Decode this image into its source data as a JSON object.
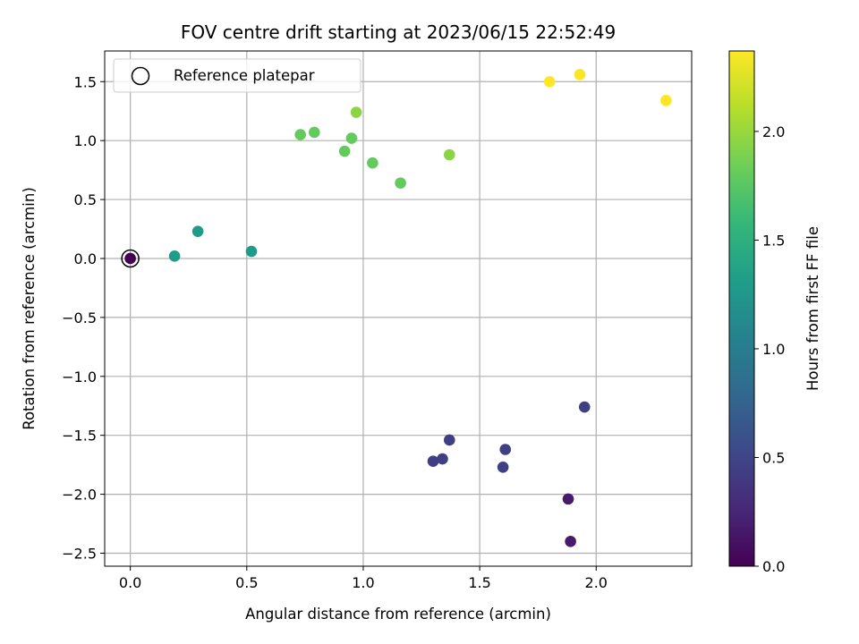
{
  "chart_data": {
    "type": "scatter",
    "title": "FOV centre drift starting at 2023/06/15 22:52:49",
    "xlabel": "Angular distance from reference (arcmin)",
    "ylabel": "Rotation from reference (arcmin)",
    "xlim": [
      -0.11,
      2.41
    ],
    "ylim": [
      -2.61,
      1.76
    ],
    "xticks": [
      0.0,
      0.5,
      1.0,
      1.5,
      2.0
    ],
    "xtick_labels": [
      "0.0",
      "0.5",
      "1.0",
      "1.5",
      "2.0"
    ],
    "yticks": [
      1.5,
      1.0,
      0.5,
      0.0,
      -0.5,
      -1.0,
      -1.5,
      -2.0,
      -2.5
    ],
    "ytick_labels": [
      "1.5",
      "1.0",
      "0.5",
      "0.0",
      "−0.5",
      "−1.0",
      "−1.5",
      "−2.0",
      "−2.5"
    ],
    "grid": true,
    "legend": {
      "placement": "upper-left",
      "entries": [
        "Reference platepar"
      ]
    },
    "colorbar": {
      "label": "Hours from first FF file",
      "range": [
        0.0,
        2.37
      ],
      "ticks": [
        0.0,
        0.5,
        1.0,
        1.5,
        2.0
      ],
      "tick_labels": [
        "0.0",
        "0.5",
        "1.0",
        "1.5",
        "2.0"
      ],
      "colormap": "viridis"
    },
    "reference_point": {
      "x": 0.0,
      "y": 0.0
    },
    "points": [
      {
        "x": 0.0,
        "y": 0.0,
        "hours": 0.0
      },
      {
        "x": 1.88,
        "y": -2.04,
        "hours": 0.17
      },
      {
        "x": 1.89,
        "y": -2.4,
        "hours": 0.17
      },
      {
        "x": 1.95,
        "y": -1.26,
        "hours": 0.45
      },
      {
        "x": 1.61,
        "y": -1.62,
        "hours": 0.45
      },
      {
        "x": 1.6,
        "y": -1.77,
        "hours": 0.45
      },
      {
        "x": 1.37,
        "y": -1.54,
        "hours": 0.45
      },
      {
        "x": 1.34,
        "y": -1.7,
        "hours": 0.45
      },
      {
        "x": 1.3,
        "y": -1.72,
        "hours": 0.45
      },
      {
        "x": 0.19,
        "y": 0.02,
        "hours": 1.3
      },
      {
        "x": 0.29,
        "y": 0.23,
        "hours": 1.3
      },
      {
        "x": 0.52,
        "y": 0.06,
        "hours": 1.3
      },
      {
        "x": 0.73,
        "y": 1.05,
        "hours": 1.8
      },
      {
        "x": 0.79,
        "y": 1.07,
        "hours": 1.8
      },
      {
        "x": 0.92,
        "y": 0.91,
        "hours": 1.8
      },
      {
        "x": 0.95,
        "y": 1.02,
        "hours": 1.8
      },
      {
        "x": 1.04,
        "y": 0.81,
        "hours": 1.8
      },
      {
        "x": 1.16,
        "y": 0.64,
        "hours": 1.8
      },
      {
        "x": 0.97,
        "y": 1.24,
        "hours": 1.95
      },
      {
        "x": 1.37,
        "y": 0.88,
        "hours": 1.95
      },
      {
        "x": 1.8,
        "y": 1.5,
        "hours": 2.37
      },
      {
        "x": 1.93,
        "y": 1.56,
        "hours": 2.37
      },
      {
        "x": 2.3,
        "y": 1.34,
        "hours": 2.37
      }
    ]
  }
}
